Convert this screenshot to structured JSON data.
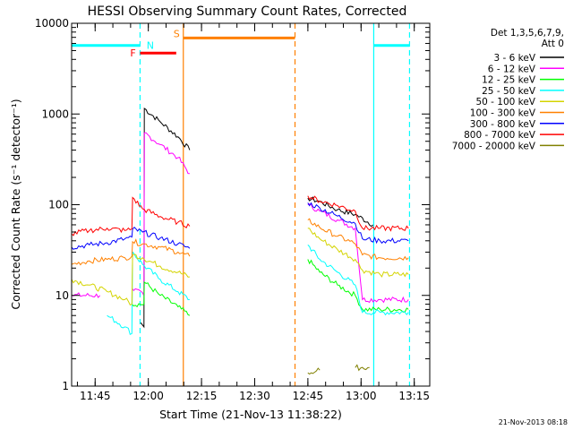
{
  "chart_data": {
    "type": "line",
    "title": "HESSI Observing Summary Count Rates, Corrected",
    "xlabel": "Start Time (21-Nov-13 11:38:22)",
    "ylabel": "Corrected Count Rate (s⁻¹ detector⁻¹)",
    "yscale": "log",
    "ylim": [
      1,
      10000
    ],
    "xlim_minutes_since_11_38_22": [
      0,
      101
    ],
    "yticks": [
      {
        "value": 1,
        "label": "1"
      },
      {
        "value": 10,
        "label": "10"
      },
      {
        "value": 100,
        "label": "100"
      },
      {
        "value": 1000,
        "label": "1000"
      },
      {
        "value": 10000,
        "label": "10000"
      }
    ],
    "xticks": [
      {
        "t": 6.63,
        "label": "11:45"
      },
      {
        "t": 21.63,
        "label": "12:00"
      },
      {
        "t": 36.63,
        "label": "12:15"
      },
      {
        "t": 51.63,
        "label": "12:30"
      },
      {
        "t": 66.63,
        "label": "12:45"
      },
      {
        "t": 81.63,
        "label": "13:00"
      },
      {
        "t": 96.63,
        "label": "13:15"
      }
    ],
    "legend": {
      "title_lines": [
        "Det 1,3,5,6,7,9,",
        "Att 0"
      ],
      "placement": "right"
    },
    "series": [
      {
        "name": "3 - 6 keV",
        "color": "#000000",
        "points": [
          [
            19.5,
            5
          ],
          [
            20.4,
            4.5
          ],
          [
            20.5,
            1150
          ],
          [
            25,
            820
          ],
          [
            30,
            560
          ],
          [
            33.3,
            400
          ],
          [
            66.6,
            118
          ],
          [
            70,
            108
          ],
          [
            75,
            88
          ],
          [
            80,
            78
          ],
          [
            85,
            60
          ],
          [
            95,
            60
          ]
        ]
      },
      {
        "name": "6 - 12 keV",
        "color": "#ff00ff",
        "points": [
          [
            0,
            10
          ],
          [
            8,
            10
          ],
          [
            17,
            12
          ],
          [
            20.4,
            10
          ],
          [
            20.5,
            620
          ],
          [
            25,
            460
          ],
          [
            30,
            330
          ],
          [
            33.3,
            220
          ],
          [
            66.6,
            100
          ],
          [
            70,
            85
          ],
          [
            75,
            68
          ],
          [
            80,
            55
          ],
          [
            82,
            9
          ],
          [
            87,
            9
          ],
          [
            95,
            9
          ]
        ]
      },
      {
        "name": "12 - 25 keV",
        "color": "#00ff00",
        "points": [
          [
            17,
            8
          ],
          [
            20.4,
            8
          ],
          [
            20.5,
            14
          ],
          [
            25,
            10
          ],
          [
            30,
            7.5
          ],
          [
            33.3,
            6
          ],
          [
            66.6,
            25
          ],
          [
            70,
            18
          ],
          [
            75,
            13
          ],
          [
            80,
            10
          ],
          [
            82,
            7
          ],
          [
            87,
            7
          ],
          [
            95,
            7
          ]
        ]
      },
      {
        "name": "25 - 50 keV",
        "color": "#00ffff",
        "points": [
          [
            0,
            6.5
          ],
          [
            10,
            6
          ],
          [
            15,
            4.5
          ],
          [
            17,
            3.8
          ],
          [
            17.2,
            30
          ],
          [
            20,
            22
          ],
          [
            25,
            15
          ],
          [
            30,
            11
          ],
          [
            33.3,
            9
          ],
          [
            66.6,
            36
          ],
          [
            70,
            25
          ],
          [
            75,
            18
          ],
          [
            80,
            13
          ],
          [
            82,
            6.5
          ],
          [
            87,
            6.5
          ],
          [
            95,
            6.5
          ]
        ]
      },
      {
        "name": "50 - 100 keV",
        "color": "#d4d400",
        "points": [
          [
            0,
            15
          ],
          [
            5,
            13
          ],
          [
            10,
            11
          ],
          [
            15,
            9
          ],
          [
            17,
            8
          ],
          [
            17.2,
            28
          ],
          [
            20,
            26
          ],
          [
            25,
            21
          ],
          [
            30,
            18
          ],
          [
            33.3,
            16
          ],
          [
            66.6,
            55
          ],
          [
            70,
            42
          ],
          [
            75,
            32
          ],
          [
            80,
            25
          ],
          [
            82,
            19
          ],
          [
            87,
            17
          ],
          [
            95,
            17
          ]
        ]
      },
      {
        "name": "100 - 300 keV",
        "color": "#ff8000",
        "points": [
          [
            0,
            22
          ],
          [
            5,
            24
          ],
          [
            10,
            25
          ],
          [
            15,
            26
          ],
          [
            17,
            27
          ],
          [
            17.2,
            39
          ],
          [
            20,
            37
          ],
          [
            25,
            34
          ],
          [
            30,
            30
          ],
          [
            33.3,
            27
          ],
          [
            66.6,
            68
          ],
          [
            70,
            56
          ],
          [
            75,
            45
          ],
          [
            80,
            37
          ],
          [
            82,
            28
          ],
          [
            87,
            26
          ],
          [
            95,
            26
          ]
        ]
      },
      {
        "name": "300 - 800 keV",
        "color": "#0000ff",
        "points": [
          [
            0,
            34
          ],
          [
            5,
            36
          ],
          [
            10,
            38
          ],
          [
            15,
            42
          ],
          [
            17,
            44
          ],
          [
            17.2,
            54
          ],
          [
            20,
            50
          ],
          [
            25,
            43
          ],
          [
            30,
            37
          ],
          [
            33.3,
            33
          ],
          [
            66.6,
            105
          ],
          [
            70,
            92
          ],
          [
            75,
            75
          ],
          [
            80,
            62
          ],
          [
            82,
            42
          ],
          [
            87,
            40
          ],
          [
            95,
            40
          ]
        ]
      },
      {
        "name": "800 - 7000 keV",
        "color": "#ff0000",
        "points": [
          [
            0,
            48
          ],
          [
            5,
            52
          ],
          [
            10,
            55
          ],
          [
            15,
            52
          ],
          [
            17,
            54
          ],
          [
            17.2,
            120
          ],
          [
            20,
            90
          ],
          [
            25,
            74
          ],
          [
            30,
            64
          ],
          [
            33.3,
            58
          ],
          [
            66.6,
            125
          ],
          [
            70,
            110
          ],
          [
            75,
            98
          ],
          [
            80,
            85
          ],
          [
            82,
            55
          ],
          [
            87,
            55
          ],
          [
            95,
            55
          ]
        ]
      },
      {
        "name": "7000 - 20000 keV",
        "color": "#808000",
        "points": [
          [
            66.6,
            1.4
          ],
          [
            70,
            1.5
          ],
          [
            80,
            1.6
          ],
          [
            84,
            1.6
          ]
        ]
      }
    ],
    "annotations": {
      "attenuator_segments": [
        {
          "color": "#00ffff",
          "t_start": 0,
          "t_end": 19.3,
          "value": 5700
        },
        {
          "color": "#00ffff",
          "t_start": 85.2,
          "t_end": 95.3,
          "value": 5700
        }
      ],
      "flare_segment": {
        "label": "F",
        "color": "#ff0000",
        "t_start": 19.3,
        "t_end": 29.5,
        "value": 4700
      },
      "saa_segment": {
        "label": "S",
        "color": "#ff8000",
        "t_start": 31.5,
        "t_end": 63.0,
        "value": 6900
      },
      "night_label": {
        "label": "N",
        "color": "#00ffff",
        "t": 20.4
      },
      "vlines": [
        {
          "t": 19.3,
          "color": "#00ffff",
          "style": "dashed"
        },
        {
          "t": 31.5,
          "color": "#ff8000",
          "style": "solid"
        },
        {
          "t": 63.0,
          "color": "#ff8000",
          "style": "dashed"
        },
        {
          "t": 85.2,
          "color": "#00ffff",
          "style": "solid"
        },
        {
          "t": 95.3,
          "color": "#00ffff",
          "style": "dashed"
        }
      ]
    },
    "footer_date": "21-Nov-2013 08:18"
  }
}
